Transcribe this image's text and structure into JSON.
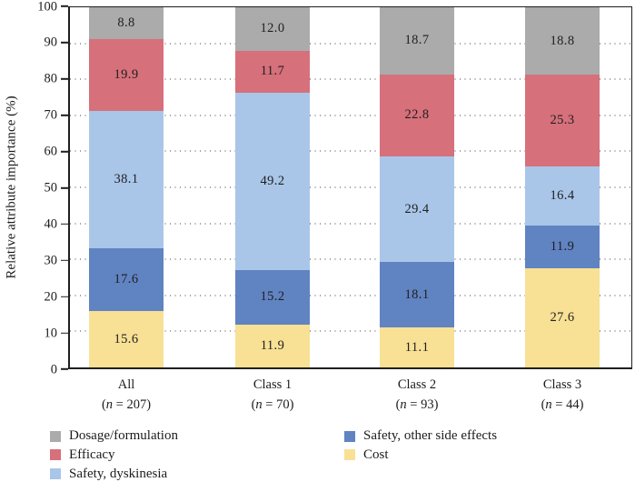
{
  "chart_data": {
    "type": "bar",
    "stacked": true,
    "title": "",
    "xlabel": "",
    "ylabel": "Relative attribute importance (%)",
    "ylim": [
      0,
      100
    ],
    "ytick_step": 10,
    "grid": "horizontal dotted lines at every 10, full plot width, behind bars; solid black border around plot area",
    "value_label_format": "one decimal place, centered inside each segment",
    "categories": [
      "All",
      "Class 1",
      "Class 2",
      "Class 3"
    ],
    "category_sublabels": [
      "(n = 207)",
      "(n = 70)",
      "(n = 93)",
      "(n = 44)"
    ],
    "stack_order_bottom_to_top": [
      "Cost",
      "Safety, other side effects",
      "Safety, dyskinesia",
      "Efficacy",
      "Dosage/formulation"
    ],
    "series": [
      {
        "name": "Cost",
        "color": "#f8e095",
        "values": [
          15.6,
          11.9,
          11.1,
          27.6
        ]
      },
      {
        "name": "Safety, other side effects",
        "color": "#6083c2",
        "values": [
          17.6,
          15.2,
          18.1,
          11.9
        ]
      },
      {
        "name": "Safety, dyskinesia",
        "color": "#a9c6e9",
        "values": [
          38.1,
          49.2,
          29.4,
          16.4
        ]
      },
      {
        "name": "Efficacy",
        "color": "#d6707b",
        "values": [
          19.9,
          11.7,
          22.8,
          25.3
        ]
      },
      {
        "name": "Dosage/formulation",
        "color": "#ababab",
        "values": [
          8.8,
          12.0,
          18.7,
          18.8
        ]
      }
    ],
    "legend": {
      "position": "bottom, two columns",
      "columns": [
        [
          "Dosage/formulation",
          "Efficacy",
          "Safety, dyskinesia"
        ],
        [
          "Safety, other side effects",
          "Cost"
        ]
      ]
    },
    "colors": {
      "axis": "#1f1f1f",
      "text": "#1c1c1c",
      "background": "#ffffff"
    }
  }
}
